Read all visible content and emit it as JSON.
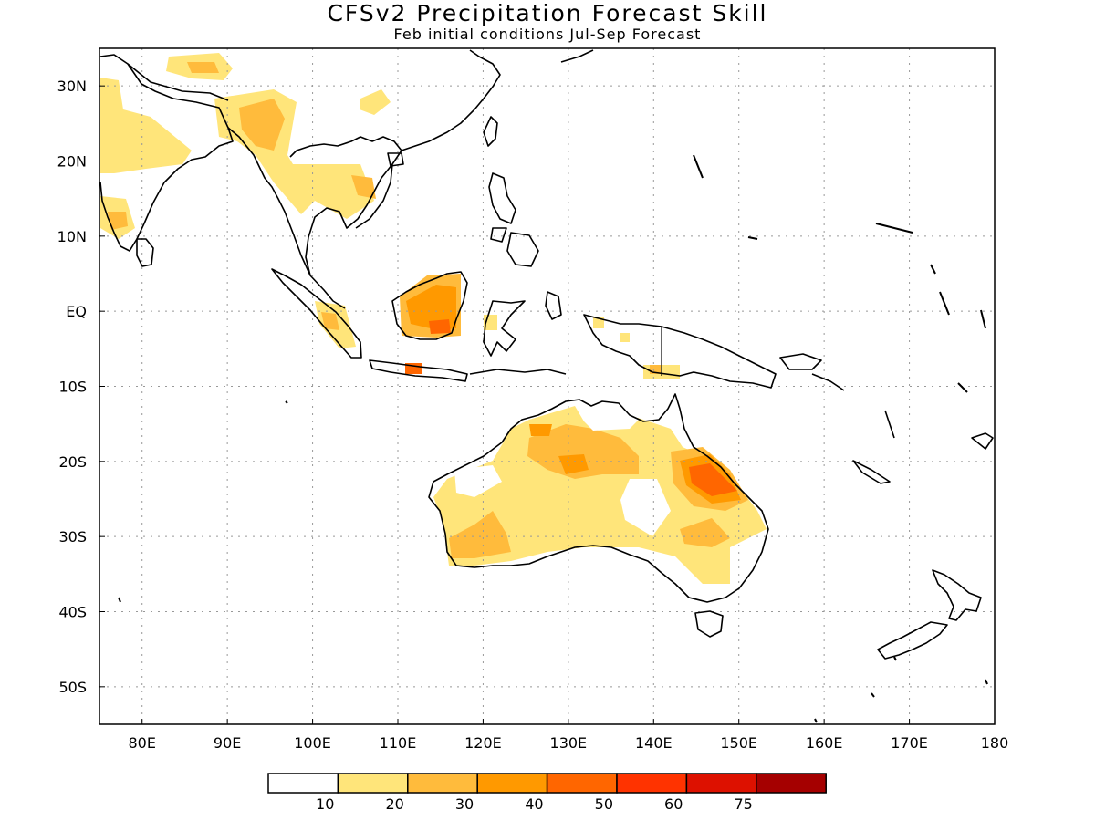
{
  "title": "CFSv2 Precipitation Forecast Skill",
  "subtitle": "Feb initial conditions  Jul-Sep Forecast",
  "map": {
    "lon_range": [
      75,
      180
    ],
    "lat_range": [
      -55,
      35
    ],
    "grid": true,
    "lat_ticks": [
      {
        "lat": 30,
        "label": "30N"
      },
      {
        "lat": 20,
        "label": "20N"
      },
      {
        "lat": 10,
        "label": "10N"
      },
      {
        "lat": 0,
        "label": "EQ"
      },
      {
        "lat": -10,
        "label": "10S"
      },
      {
        "lat": -20,
        "label": "20S"
      },
      {
        "lat": -30,
        "label": "30S"
      },
      {
        "lat": -40,
        "label": "40S"
      },
      {
        "lat": -50,
        "label": "50S"
      }
    ],
    "lon_ticks": [
      {
        "lon": 80,
        "label": "80E"
      },
      {
        "lon": 90,
        "label": "90E"
      },
      {
        "lon": 100,
        "label": "100E"
      },
      {
        "lon": 110,
        "label": "110E"
      },
      {
        "lon": 120,
        "label": "120E"
      },
      {
        "lon": 130,
        "label": "130E"
      },
      {
        "lon": 140,
        "label": "140E"
      },
      {
        "lon": 150,
        "label": "150E"
      },
      {
        "lon": 160,
        "label": "160E"
      },
      {
        "lon": 170,
        "label": "170E"
      },
      {
        "lon": 180,
        "label": "180"
      }
    ]
  },
  "colorbar": {
    "colors": [
      "#ffffff",
      "#ffe57a",
      "#ffbb3c",
      "#ff9900",
      "#ff6600",
      "#ff3300",
      "#dd1100",
      "#a50000"
    ],
    "labels": [
      "10",
      "20",
      "30",
      "40",
      "50",
      "60",
      "75"
    ]
  },
  "colors": {
    "level1": "#ffe57a",
    "level2": "#ffbb3c",
    "level3": "#ff9900",
    "level4": "#ff6600",
    "coast": "#000000",
    "grid": "#999999"
  }
}
